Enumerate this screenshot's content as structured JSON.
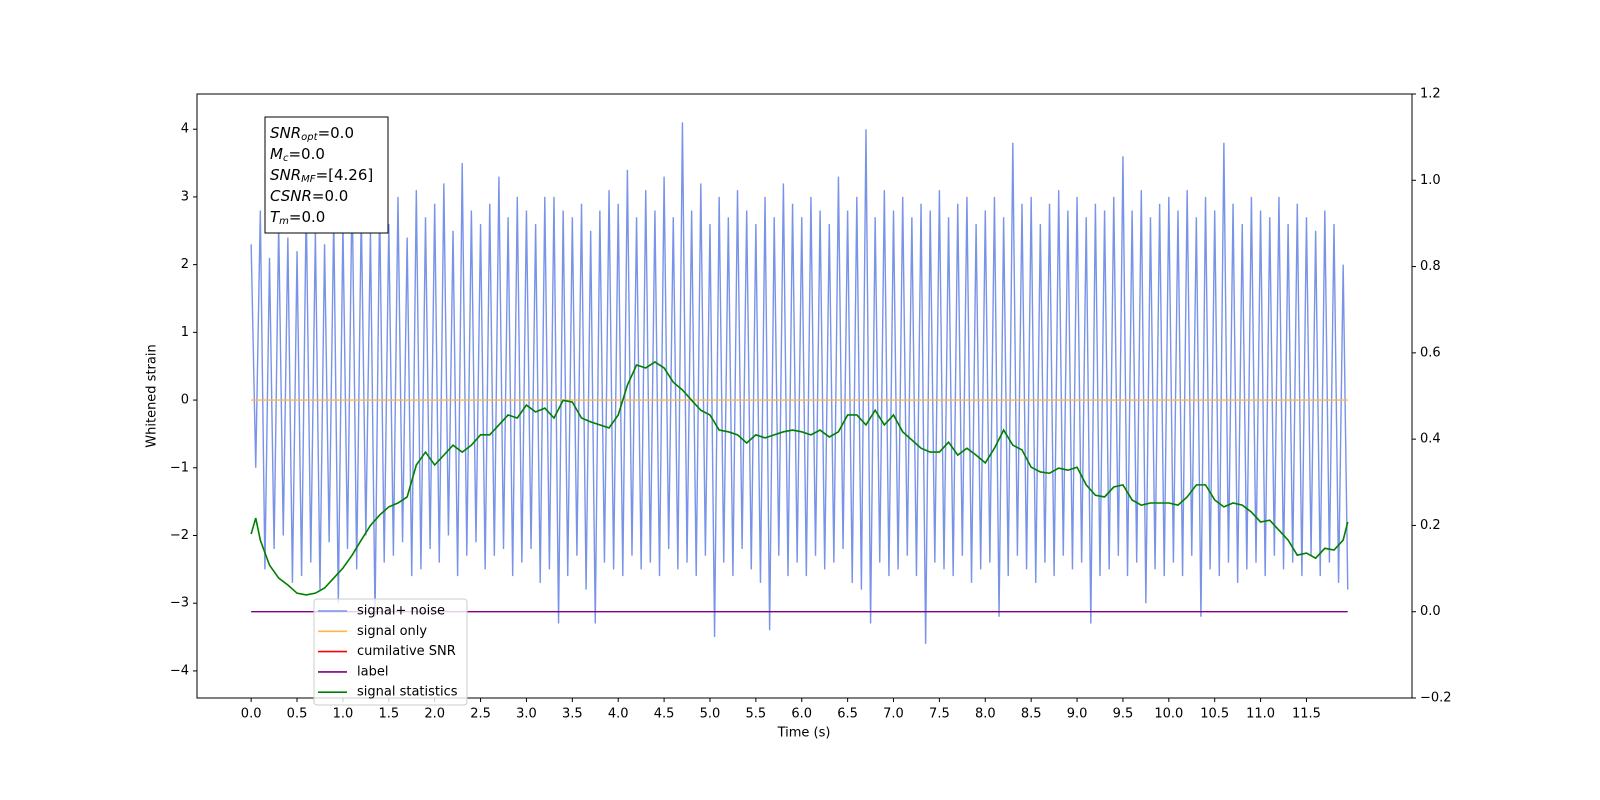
{
  "chart_data": {
    "type": "line",
    "xlabel": "Time (s)",
    "ylabel": "Whitened strain",
    "xlim": [
      -0.59,
      12.65
    ],
    "ylim": [
      -4.4,
      4.52
    ],
    "y2lim": [
      -0.2,
      1.2
    ],
    "xticks": [
      {
        "value": 0,
        "label": "0.0"
      },
      {
        "value": 0.5,
        "label": "0.5"
      },
      {
        "value": 1,
        "label": "1.0"
      },
      {
        "value": 1.5,
        "label": "1.5"
      },
      {
        "value": 2,
        "label": "2.0"
      },
      {
        "value": 2.5,
        "label": "2.5"
      },
      {
        "value": 3,
        "label": "3.0"
      },
      {
        "value": 3.5,
        "label": "3.5"
      },
      {
        "value": 4,
        "label": "4.0"
      },
      {
        "value": 4.5,
        "label": "4.5"
      },
      {
        "value": 5,
        "label": "5.0"
      },
      {
        "value": 5.5,
        "label": "5.5"
      },
      {
        "value": 6,
        "label": "6.0"
      },
      {
        "value": 6.5,
        "label": "6.5"
      },
      {
        "value": 7,
        "label": "7.0"
      },
      {
        "value": 7.5,
        "label": "7.5"
      },
      {
        "value": 8,
        "label": "8.0"
      },
      {
        "value": 8.5,
        "label": "8.5"
      },
      {
        "value": 9,
        "label": "9.0"
      },
      {
        "value": 9.5,
        "label": "9.5"
      },
      {
        "value": 10,
        "label": "10.0"
      },
      {
        "value": 10.5,
        "label": "10.5"
      },
      {
        "value": 11,
        "label": "11.0"
      },
      {
        "value": 11.5,
        "label": "11.5"
      }
    ],
    "yticks": [
      {
        "value": -4,
        "label": "−4"
      },
      {
        "value": -3,
        "label": "−3"
      },
      {
        "value": -2,
        "label": "−2"
      },
      {
        "value": -1,
        "label": "−1"
      },
      0,
      1,
      2,
      3,
      4
    ],
    "y2ticks": [
      {
        "value": -0.2,
        "label": "−0.2"
      },
      {
        "value": 0,
        "label": "0.0"
      },
      0.2,
      0.4,
      0.6,
      0.8,
      {
        "value": 1,
        "label": "1.0"
      },
      1.2
    ],
    "legend_loc": "lower left",
    "annotation": {
      "lines": [
        {
          "name": "SNR",
          "sub": "opt",
          "text": "=0.0"
        },
        {
          "name": "M",
          "sub": "c",
          "text": "=0.0"
        },
        {
          "name": "SNR",
          "sub": "MF",
          "text": "=[4.26]"
        },
        {
          "name": "CSNR",
          "sub": "",
          "text": "=0.0"
        },
        {
          "name": "T",
          "sub": "m",
          "text": "=0.0"
        }
      ]
    },
    "series": [
      {
        "name": "signal+ noise",
        "color": "#7893e8",
        "axis": "y",
        "x": [
          0,
          0.05,
          0.1,
          0.15,
          0.2,
          0.25,
          0.3,
          0.35,
          0.4,
          0.45,
          0.5,
          0.55,
          0.6,
          0.65,
          0.7,
          0.75,
          0.8,
          0.85,
          0.9,
          0.95,
          1,
          1.05,
          1.1,
          1.15,
          1.2,
          1.25,
          1.3,
          1.35,
          1.4,
          1.45,
          1.5,
          1.55,
          1.6,
          1.65,
          1.7,
          1.75,
          1.8,
          1.85,
          1.9,
          1.95,
          2,
          2.05,
          2.1,
          2.15,
          2.2,
          2.25,
          2.3,
          2.35,
          2.4,
          2.45,
          2.5,
          2.55,
          2.6,
          2.65,
          2.7,
          2.75,
          2.8,
          2.85,
          2.9,
          2.95,
          3,
          3.05,
          3.1,
          3.15,
          3.2,
          3.25,
          3.3,
          3.35,
          3.4,
          3.45,
          3.5,
          3.55,
          3.6,
          3.65,
          3.7,
          3.75,
          3.8,
          3.85,
          3.9,
          3.95,
          4,
          4.05,
          4.1,
          4.15,
          4.2,
          4.25,
          4.3,
          4.35,
          4.4,
          4.45,
          4.5,
          4.55,
          4.6,
          4.65,
          4.7,
          4.75,
          4.8,
          4.85,
          4.9,
          4.95,
          5,
          5.05,
          5.1,
          5.15,
          5.2,
          5.25,
          5.3,
          5.35,
          5.4,
          5.45,
          5.5,
          5.55,
          5.6,
          5.65,
          5.7,
          5.75,
          5.8,
          5.85,
          5.9,
          5.95,
          6,
          6.05,
          6.1,
          6.15,
          6.2,
          6.25,
          6.3,
          6.35,
          6.4,
          6.45,
          6.5,
          6.55,
          6.6,
          6.65,
          6.7,
          6.75,
          6.8,
          6.85,
          6.9,
          6.95,
          7,
          7.05,
          7.1,
          7.15,
          7.2,
          7.25,
          7.3,
          7.35,
          7.4,
          7.45,
          7.5,
          7.55,
          7.6,
          7.65,
          7.7,
          7.75,
          7.8,
          7.85,
          7.9,
          7.95,
          8,
          8.05,
          8.1,
          8.15,
          8.2,
          8.25,
          8.3,
          8.35,
          8.4,
          8.45,
          8.5,
          8.55,
          8.6,
          8.65,
          8.7,
          8.75,
          8.8,
          8.85,
          8.9,
          8.95,
          9,
          9.05,
          9.1,
          9.15,
          9.2,
          9.25,
          9.3,
          9.35,
          9.4,
          9.45,
          9.5,
          9.55,
          9.6,
          9.65,
          9.7,
          9.75,
          9.8,
          9.85,
          9.9,
          9.95,
          10,
          10.05,
          10.1,
          10.15,
          10.2,
          10.25,
          10.3,
          10.35,
          10.4,
          10.45,
          10.5,
          10.55,
          10.6,
          10.65,
          10.7,
          10.75,
          10.8,
          10.85,
          10.9,
          10.95,
          11,
          11.05,
          11.1,
          11.15,
          11.2,
          11.25,
          11.3,
          11.35,
          11.4,
          11.45,
          11.5,
          11.55,
          11.6,
          11.65,
          11.7,
          11.75,
          11.8,
          11.85,
          11.9,
          11.95
        ],
        "values": [
          2.3,
          -1.0,
          2.8,
          -2.5,
          2.1,
          -2.2,
          2.6,
          -2.0,
          2.4,
          -2.7,
          2.2,
          -2.6,
          2.9,
          -2.4,
          2.5,
          -2.8,
          2.3,
          -2.1,
          2.7,
          -3.0,
          2.6,
          -2.2,
          3.2,
          -2.5,
          2.8,
          -2.0,
          2.5,
          -3.2,
          2.9,
          -2.4,
          2.6,
          -2.3,
          3.0,
          -2.1,
          2.4,
          -2.6,
          3.1,
          -2.5,
          2.7,
          -2.2,
          2.9,
          -2.4,
          3.2,
          -2.0,
          2.5,
          -2.6,
          3.5,
          -2.3,
          2.8,
          -2.1,
          2.6,
          -2.5,
          2.9,
          -2.3,
          3.3,
          -2.2,
          2.7,
          -2.6,
          3.0,
          -2.4,
          2.8,
          -2.2,
          2.6,
          -2.7,
          3.0,
          -2.5,
          3.0,
          -3.3,
          2.8,
          -2.6,
          2.7,
          -2.3,
          2.9,
          -2.8,
          2.5,
          -3.3,
          2.8,
          -2.4,
          3.1,
          -2.5,
          2.9,
          -2.6,
          3.4,
          -2.3,
          2.7,
          -2.5,
          3.1,
          -2.4,
          2.8,
          -2.6,
          3.3,
          -2.2,
          2.7,
          -2.5,
          4.1,
          -2.4,
          2.8,
          -2.6,
          3.2,
          -2.3,
          2.6,
          -3.5,
          3.0,
          -2.4,
          2.7,
          -2.6,
          3.1,
          -2.2,
          2.8,
          -2.5,
          2.6,
          -2.7,
          3.0,
          -3.4,
          2.7,
          -2.3,
          3.2,
          -2.6,
          2.9,
          -2.4,
          2.7,
          -2.6,
          3.0,
          -2.3,
          2.8,
          -2.5,
          2.6,
          -2.4,
          3.3,
          -2.2,
          2.8,
          -2.7,
          3.0,
          -2.8,
          4.0,
          -3.3,
          2.7,
          -2.4,
          3.1,
          -2.6,
          2.8,
          -2.5,
          3.0,
          -2.3,
          2.7,
          -2.6,
          2.9,
          -3.6,
          2.8,
          -2.4,
          3.1,
          -2.5,
          2.7,
          -2.6,
          2.9,
          -2.3,
          3.0,
          -2.7,
          2.6,
          -2.5,
          2.8,
          -2.4,
          3.0,
          -3.2,
          2.7,
          -2.6,
          3.8,
          -2.3,
          2.9,
          -2.5,
          3.0,
          -2.7,
          2.6,
          -2.4,
          2.9,
          -2.6,
          3.1,
          -2.3,
          2.8,
          -2.5,
          3.0,
          -2.4,
          2.7,
          -3.3,
          2.9,
          -2.6,
          2.8,
          -2.5,
          3.0,
          -2.3,
          3.6,
          -2.6,
          2.8,
          -2.4,
          3.1,
          -3.0,
          2.7,
          -2.5,
          2.9,
          -2.6,
          3.0,
          -2.4,
          2.8,
          -2.6,
          3.1,
          -2.3,
          2.7,
          -3.2,
          3.0,
          -2.5,
          2.8,
          -2.6,
          3.8,
          -2.4,
          2.9,
          -2.7,
          2.6,
          -2.5,
          3.0,
          -2.4,
          2.8,
          -2.6,
          2.7,
          -2.3,
          3.0,
          -2.5,
          2.6,
          -2.4,
          2.9,
          -2.6,
          2.7,
          -2.3,
          2.5,
          -2.6,
          2.8,
          -2.4,
          2.6,
          -2.7,
          2.0,
          -2.8
        ]
      },
      {
        "name": "signal only",
        "color": "#ffb74d",
        "axis": "y",
        "x": [
          0,
          11.95
        ],
        "values": [
          0,
          0
        ]
      },
      {
        "name": "cumilative SNR",
        "color": "#ff0000",
        "axis": "y",
        "x": [],
        "values": []
      },
      {
        "name": "label",
        "color": "#800080",
        "axis": "y2",
        "x": [
          0,
          11.95
        ],
        "values": [
          0,
          0
        ]
      },
      {
        "name": "signal statistics",
        "color": "#008000",
        "axis": "y2",
        "x": [
          0,
          0.05,
          0.1,
          0.2,
          0.3,
          0.4,
          0.5,
          0.6,
          0.7,
          0.8,
          0.9,
          1,
          1.1,
          1.2,
          1.3,
          1.4,
          1.5,
          1.6,
          1.7,
          1.8,
          1.9,
          2,
          2.1,
          2.2,
          2.3,
          2.4,
          2.5,
          2.6,
          2.7,
          2.8,
          2.9,
          3,
          3.1,
          3.2,
          3.3,
          3.4,
          3.5,
          3.6,
          3.7,
          3.8,
          3.9,
          4,
          4.1,
          4.2,
          4.3,
          4.4,
          4.5,
          4.6,
          4.7,
          4.8,
          4.9,
          5,
          5.1,
          5.2,
          5.3,
          5.4,
          5.5,
          5.6,
          5.7,
          5.8,
          5.9,
          6,
          6.1,
          6.2,
          6.3,
          6.4,
          6.5,
          6.6,
          6.7,
          6.8,
          6.9,
          7,
          7.1,
          7.2,
          7.3,
          7.4,
          7.5,
          7.6,
          7.7,
          7.8,
          7.9,
          8,
          8.1,
          8.2,
          8.3,
          8.4,
          8.5,
          8.6,
          8.7,
          8.8,
          8.9,
          9,
          9.1,
          9.2,
          9.3,
          9.4,
          9.5,
          9.6,
          9.7,
          9.8,
          9.9,
          10,
          10.1,
          10.2,
          10.3,
          10.4,
          10.5,
          10.6,
          10.7,
          10.8,
          10.9,
          11,
          11.1,
          11.2,
          11.3,
          11.4,
          11.5,
          11.6,
          11.7,
          11.8,
          11.9,
          11.95
        ],
        "values": [
          0.18,
          0.217,
          0.166,
          0.108,
          0.078,
          0.062,
          0.043,
          0.039,
          0.043,
          0.055,
          0.078,
          0.101,
          0.131,
          0.166,
          0.2,
          0.224,
          0.243,
          0.252,
          0.266,
          0.34,
          0.37,
          0.34,
          0.363,
          0.386,
          0.37,
          0.386,
          0.41,
          0.41,
          0.433,
          0.456,
          0.449,
          0.479,
          0.463,
          0.472,
          0.449,
          0.49,
          0.486,
          0.449,
          0.44,
          0.433,
          0.426,
          0.456,
          0.525,
          0.572,
          0.565,
          0.579,
          0.565,
          0.532,
          0.514,
          0.49,
          0.467,
          0.456,
          0.421,
          0.417,
          0.41,
          0.391,
          0.41,
          0.403,
          0.41,
          0.417,
          0.421,
          0.417,
          0.41,
          0.421,
          0.405,
          0.417,
          0.456,
          0.456,
          0.433,
          0.467,
          0.433,
          0.456,
          0.417,
          0.398,
          0.379,
          0.37,
          0.37,
          0.393,
          0.363,
          0.379,
          0.363,
          0.345,
          0.379,
          0.421,
          0.386,
          0.375,
          0.335,
          0.324,
          0.321,
          0.333,
          0.328,
          0.335,
          0.294,
          0.27,
          0.266,
          0.289,
          0.294,
          0.259,
          0.247,
          0.252,
          0.252,
          0.252,
          0.247,
          0.266,
          0.294,
          0.294,
          0.259,
          0.243,
          0.252,
          0.247,
          0.231,
          0.208,
          0.212,
          0.189,
          0.166,
          0.131,
          0.136,
          0.124,
          0.147,
          0.143,
          0.166,
          0.208
        ]
      }
    ]
  }
}
